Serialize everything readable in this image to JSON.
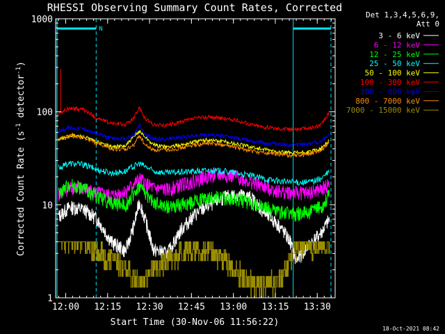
{
  "chart_data": {
    "type": "line",
    "title": "RHESSI Observing Summary Count Rates, Corrected",
    "xlabel": "Start Time (30-Nov-06 11:56:22)",
    "ylabel": "Corrected Count Rate (s",
    "ylabel_sup1": "-1",
    "ylabel_mid": " detector",
    "ylabel_sup2": "-1",
    "ylabel_end": ")",
    "footer": "18-Oct-2021 08:42",
    "y_scale": "log",
    "ylim": [
      1,
      1000
    ],
    "xlim_minutes_since_start": [
      0,
      100
    ],
    "x_tick_labels": [
      "12:00",
      "12:15",
      "12:30",
      "12:45",
      "13:00",
      "13:15",
      "13:30"
    ],
    "x_tick_minutes": [
      3.6,
      18.6,
      33.6,
      48.6,
      63.6,
      78.6,
      93.6
    ],
    "y_tick_labels": [
      "1",
      "10",
      "100",
      "1000"
    ],
    "y_tick_values": [
      1,
      10,
      100,
      1000
    ],
    "legend": {
      "header1": "Det 1,3,4,5,6,9,",
      "header2": "Att 0",
      "placement": "outside-right"
    },
    "annotation_n": "N",
    "night_intervals_minutes": [
      [
        0.5,
        14.5
      ],
      [
        85,
        98.5
      ]
    ],
    "night_bar_color": "#00e5ff",
    "series": [
      {
        "name": "3 - 6 keV",
        "color": "#ffffff",
        "x": [
          1,
          5,
          10,
          15,
          20,
          25,
          28,
          30,
          32,
          35,
          40,
          45,
          50,
          55,
          60,
          65,
          70,
          75,
          80,
          84,
          86,
          90,
          95,
          98
        ],
        "y": [
          7.5,
          9.5,
          9,
          7,
          4,
          3.2,
          6,
          11,
          7,
          3.3,
          3,
          5.5,
          8,
          10,
          12,
          13,
          12,
          8,
          6,
          4,
          2.5,
          3.5,
          5,
          7
        ]
      },
      {
        "name": "6 - 12 keV",
        "color": "#ff00ff",
        "x": [
          1,
          5,
          10,
          15,
          20,
          25,
          30,
          35,
          40,
          45,
          50,
          55,
          60,
          65,
          70,
          75,
          80,
          85,
          90,
          95,
          98
        ],
        "y": [
          13,
          15.5,
          15,
          13.5,
          12.5,
          14,
          19,
          15,
          14.5,
          16.5,
          18.5,
          20.5,
          21,
          20,
          17.5,
          15.5,
          14,
          13.5,
          13.5,
          14.5,
          17
        ]
      },
      {
        "name": "12 - 25 keV",
        "color": "#00ff00",
        "x": [
          1,
          5,
          10,
          15,
          20,
          25,
          30,
          35,
          40,
          45,
          50,
          55,
          60,
          65,
          70,
          75,
          80,
          85,
          90,
          95,
          98
        ],
        "y": [
          13,
          16.5,
          15,
          12.5,
          10.5,
          10,
          16,
          10.5,
          9.5,
          10,
          11,
          12,
          12,
          11.5,
          10.5,
          9.5,
          8.5,
          8,
          8.3,
          9.5,
          13
        ]
      },
      {
        "name": "25 - 50 keV",
        "color": "#00ffff",
        "x": [
          1,
          5,
          10,
          15,
          20,
          25,
          30,
          35,
          40,
          45,
          50,
          55,
          60,
          65,
          70,
          75,
          80,
          85,
          90,
          95,
          98
        ],
        "y": [
          25,
          28,
          27,
          24,
          22,
          23,
          28,
          23,
          22,
          22.5,
          23,
          23.5,
          23,
          22,
          20.5,
          19,
          18,
          17.5,
          17.5,
          19,
          23
        ]
      },
      {
        "name": "50 - 100 keV",
        "color": "#ffff00",
        "x": [
          1,
          5,
          10,
          15,
          20,
          25,
          30,
          35,
          40,
          45,
          50,
          55,
          60,
          65,
          70,
          75,
          80,
          85,
          90,
          95,
          98
        ],
        "y": [
          50,
          56,
          54,
          47,
          42,
          43,
          62,
          44,
          42,
          44,
          48,
          50,
          48,
          45,
          42,
          39,
          37,
          36,
          36.5,
          40,
          50
        ]
      },
      {
        "name": "100 - 300 keV",
        "color": "#ff0000",
        "x": [
          1,
          5,
          10,
          15,
          20,
          25,
          28,
          30,
          32,
          35,
          40,
          45,
          50,
          55,
          60,
          65,
          70,
          75,
          80,
          85,
          90,
          95,
          98
        ],
        "y": [
          95,
          110,
          105,
          85,
          75,
          73,
          85,
          113,
          85,
          72,
          72,
          78,
          85,
          88,
          85,
          80,
          73,
          68,
          66,
          65,
          66,
          72,
          100
        ]
      },
      {
        "name": "300 - 800 keV",
        "color": "#0000ff",
        "x": [
          1,
          5,
          10,
          15,
          20,
          25,
          28,
          30,
          32,
          35,
          40,
          45,
          50,
          55,
          60,
          65,
          70,
          75,
          80,
          85,
          90,
          95,
          98
        ],
        "y": [
          62,
          68,
          66,
          57,
          52,
          51,
          57,
          72,
          57,
          51,
          51,
          53,
          56,
          57,
          55,
          52,
          49,
          46,
          45,
          44,
          45,
          48,
          58
        ]
      },
      {
        "name": "800 - 7000 keV",
        "color": "#ff8c00",
        "x": [
          1,
          5,
          10,
          15,
          20,
          25,
          28,
          30,
          32,
          35,
          40,
          45,
          50,
          55,
          60,
          65,
          70,
          75,
          80,
          85,
          90,
          95,
          98
        ],
        "y": [
          50,
          55,
          53,
          45,
          40,
          39,
          44,
          56,
          44,
          39,
          39,
          41,
          44,
          46,
          44,
          41,
          38,
          36,
          35,
          34,
          35,
          38,
          48
        ]
      },
      {
        "name": "7000 - 15000 keV",
        "color": "#9b8e00",
        "x": [
          1,
          5,
          10,
          12,
          15,
          20,
          25,
          30,
          35,
          40,
          45,
          50,
          55,
          60,
          65,
          70,
          75,
          80,
          84,
          86,
          90,
          95,
          98
        ],
        "y": [
          4,
          4,
          4,
          3.5,
          3,
          2.5,
          2,
          1.3,
          2,
          2.5,
          3,
          3,
          3,
          2.5,
          1.8,
          1.4,
          1.3,
          1.5,
          2.5,
          3.5,
          3.5,
          3.5,
          4
        ]
      }
    ]
  }
}
